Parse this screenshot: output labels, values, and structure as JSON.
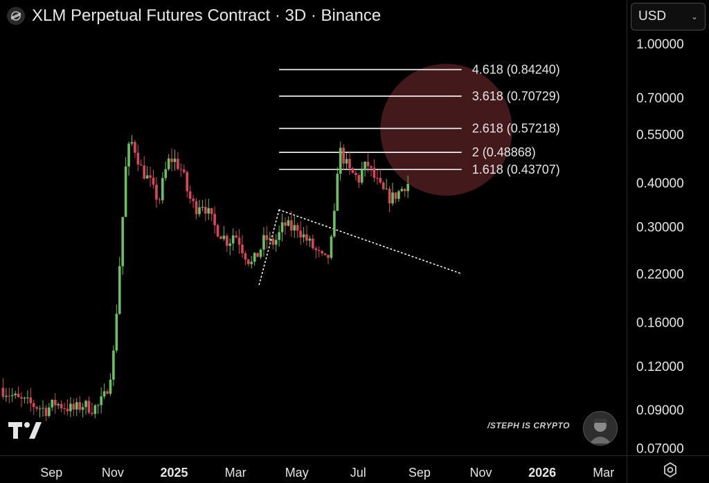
{
  "header": {
    "title": "XLM Perpetual Futures Contract · 3D · Binance",
    "logo_icon": "stellar-icon"
  },
  "currency_select": {
    "value": "USD"
  },
  "watermark": {
    "text": "/STEPH IS CRYPTO"
  },
  "colors": {
    "up": "#6cbf63",
    "down": "#d9465a",
    "background": "#000000",
    "target_zone": "#7a2e33"
  },
  "chart_data": {
    "type": "candlestick",
    "title": "XLM Perpetual Futures Contract · 3D · Binance",
    "y_scale": "log",
    "ylim": [
      0.0667,
      1.0894
    ],
    "xlim": [
      0,
      20
    ],
    "y_ticks": [
      1.0,
      0.7,
      0.55,
      0.4,
      0.3,
      0.22,
      0.16,
      0.12,
      0.09,
      0.07
    ],
    "y_tick_labels": [
      "1.00000",
      "0.70000",
      "0.55000",
      "0.40000",
      "0.30000",
      "0.22000",
      "0.16000",
      "0.12000",
      "0.09000",
      "0.07000"
    ],
    "x_ticks": [
      {
        "label": "Sep",
        "pos": 1.0,
        "bold": false
      },
      {
        "label": "Nov",
        "pos": 3.0,
        "bold": false
      },
      {
        "label": "2025",
        "pos": 5.0,
        "bold": true
      },
      {
        "label": "Mar",
        "pos": 7.0,
        "bold": false
      },
      {
        "label": "May",
        "pos": 9.0,
        "bold": false
      },
      {
        "label": "Jul",
        "pos": 11.0,
        "bold": false
      },
      {
        "label": "Sep",
        "pos": 13.0,
        "bold": false
      },
      {
        "label": "Nov",
        "pos": 15.0,
        "bold": false
      },
      {
        "label": "2026",
        "pos": 17.0,
        "bold": true
      },
      {
        "label": "Mar",
        "pos": 19.0,
        "bold": false
      }
    ],
    "price_path": [
      [
        0.0,
        0.104
      ],
      [
        0.3,
        0.1
      ],
      [
        0.6,
        0.096
      ],
      [
        0.9,
        0.094
      ],
      [
        1.2,
        0.092
      ],
      [
        1.5,
        0.09
      ],
      [
        1.8,
        0.094
      ],
      [
        2.1,
        0.092
      ],
      [
        2.4,
        0.09
      ],
      [
        2.7,
        0.093
      ],
      [
        3.0,
        0.091
      ],
      [
        3.2,
        0.092
      ],
      [
        3.4,
        0.098
      ],
      [
        3.55,
        0.108
      ],
      [
        3.7,
        0.13
      ],
      [
        3.85,
        0.2
      ],
      [
        4.0,
        0.32
      ],
      [
        4.1,
        0.44
      ],
      [
        4.2,
        0.5
      ],
      [
        4.3,
        0.52
      ],
      [
        4.4,
        0.5
      ],
      [
        4.5,
        0.47
      ],
      [
        4.6,
        0.44
      ],
      [
        4.75,
        0.42
      ],
      [
        4.9,
        0.4
      ],
      [
        5.05,
        0.37
      ],
      [
        5.2,
        0.36
      ],
      [
        5.35,
        0.42
      ],
      [
        5.5,
        0.46
      ],
      [
        5.65,
        0.47
      ],
      [
        5.8,
        0.45
      ],
      [
        5.95,
        0.43
      ],
      [
        6.1,
        0.38
      ],
      [
        6.25,
        0.35
      ],
      [
        6.4,
        0.34
      ],
      [
        6.55,
        0.355
      ],
      [
        6.7,
        0.34
      ],
      [
        6.85,
        0.32
      ],
      [
        7.0,
        0.3
      ],
      [
        7.15,
        0.29
      ],
      [
        7.3,
        0.28
      ],
      [
        7.45,
        0.27
      ],
      [
        7.6,
        0.285
      ],
      [
        7.75,
        0.28
      ],
      [
        7.9,
        0.26
      ],
      [
        8.05,
        0.245
      ],
      [
        8.2,
        0.235
      ],
      [
        8.35,
        0.245
      ],
      [
        8.5,
        0.26
      ],
      [
        8.65,
        0.28
      ],
      [
        8.8,
        0.27
      ],
      [
        8.95,
        0.27
      ],
      [
        9.1,
        0.285
      ],
      [
        9.25,
        0.305
      ],
      [
        9.4,
        0.3
      ],
      [
        9.55,
        0.295
      ],
      [
        9.7,
        0.3
      ],
      [
        9.85,
        0.285
      ],
      [
        10.0,
        0.275
      ],
      [
        10.15,
        0.265
      ],
      [
        10.3,
        0.255
      ],
      [
        10.45,
        0.245
      ],
      [
        10.6,
        0.24
      ],
      [
        10.75,
        0.25
      ],
      [
        10.9,
        0.32
      ],
      [
        11.0,
        0.44
      ],
      [
        11.1,
        0.49
      ],
      [
        11.25,
        0.46
      ],
      [
        11.4,
        0.43
      ],
      [
        11.55,
        0.42
      ],
      [
        11.7,
        0.41
      ],
      [
        11.85,
        0.44
      ],
      [
        12.0,
        0.45
      ],
      [
        12.15,
        0.42
      ],
      [
        12.3,
        0.4
      ],
      [
        12.45,
        0.38
      ],
      [
        12.6,
        0.37
      ],
      [
        12.75,
        0.36
      ],
      [
        12.9,
        0.37
      ],
      [
        13.05,
        0.38
      ],
      [
        13.2,
        0.395
      ],
      [
        13.35,
        0.4
      ]
    ],
    "fib_levels": [
      {
        "ratio": "4.618",
        "price": 0.8424,
        "label": "4.618 (0.84240)"
      },
      {
        "ratio": "3.618",
        "price": 0.70729,
        "label": "3.618 (0.70729)"
      },
      {
        "ratio": "2.618",
        "price": 0.57218,
        "label": "2.618 (0.57218)"
      },
      {
        "ratio": "2",
        "price": 0.48868,
        "label": "2 (0.48868)"
      },
      {
        "ratio": "1.618",
        "price": 0.43707,
        "label": "1.618 (0.43707)"
      }
    ],
    "fib_span_x": [
      9.1,
      15.05
    ],
    "trendlines": [
      {
        "style": "dotted",
        "points": [
          [
            8.45,
            0.205
          ],
          [
            9.1,
            0.335
          ]
        ]
      },
      {
        "style": "dotted",
        "points": [
          [
            9.1,
            0.335
          ],
          [
            15.05,
            0.22
          ]
        ]
      }
    ],
    "target_zone": {
      "center_x": 14.55,
      "center_price": 0.567,
      "radius_x": 2.15
    }
  }
}
